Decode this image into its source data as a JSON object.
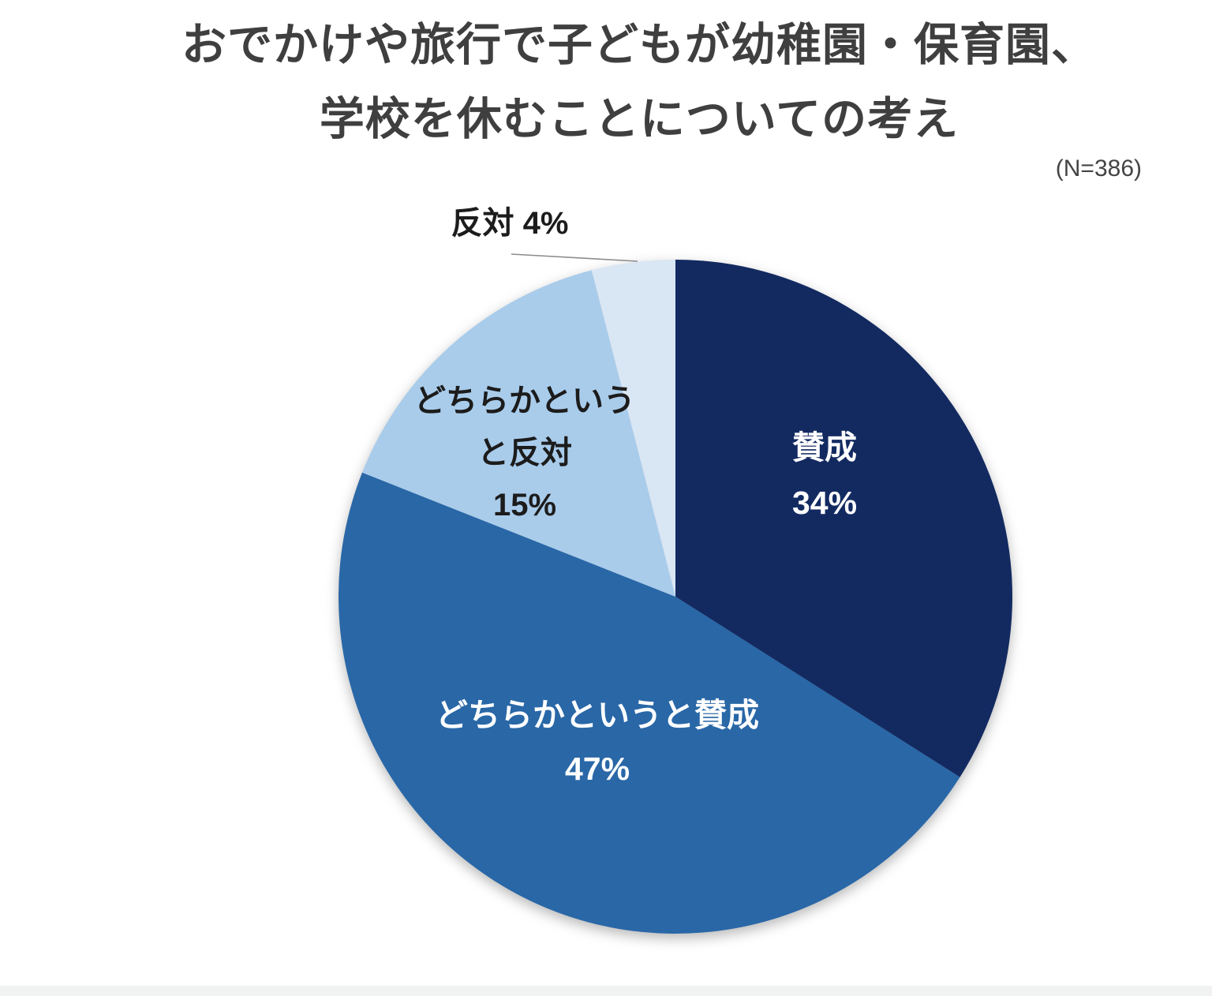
{
  "title": {
    "line1": "おでかけや旅行で子どもが幼稚園・保育園、",
    "line2": "学校を休むことについての考え"
  },
  "sample_size": "(N=386)",
  "chart_data": {
    "type": "pie",
    "title": "おでかけや旅行で子どもが幼稚園・保育園、学校を休むことについての考え",
    "sample_size_note": "(N=386)",
    "start_angle_deg_from_12_oclock": 0,
    "direction": "clockwise",
    "legend": "none",
    "slices": [
      {
        "label": "賛成",
        "value": 34,
        "unit": "%",
        "color": "#132A61",
        "text_color": "#FFFFFF",
        "label_placement": "inside",
        "label_lines": [
          "賛成",
          "34%"
        ]
      },
      {
        "label": "どちらかというと賛成",
        "value": 47,
        "unit": "%",
        "color": "#2967A7",
        "text_color": "#FFFFFF",
        "label_placement": "inside",
        "label_lines": [
          "どちらかというと賛成",
          "47%"
        ]
      },
      {
        "label": "どちらかというと反対",
        "value": 15,
        "unit": "%",
        "color": "#A9CCEB",
        "text_color": "#1C1C1C",
        "label_placement": "inside",
        "label_lines": [
          "どちらかという",
          "と反対",
          "15%"
        ]
      },
      {
        "label": "反対",
        "value": 4,
        "unit": "%",
        "color": "#D9E6F4",
        "text_color": "#1F1F1F",
        "label_placement": "outside-callout",
        "label_lines": [
          "反対 4%"
        ]
      }
    ]
  }
}
